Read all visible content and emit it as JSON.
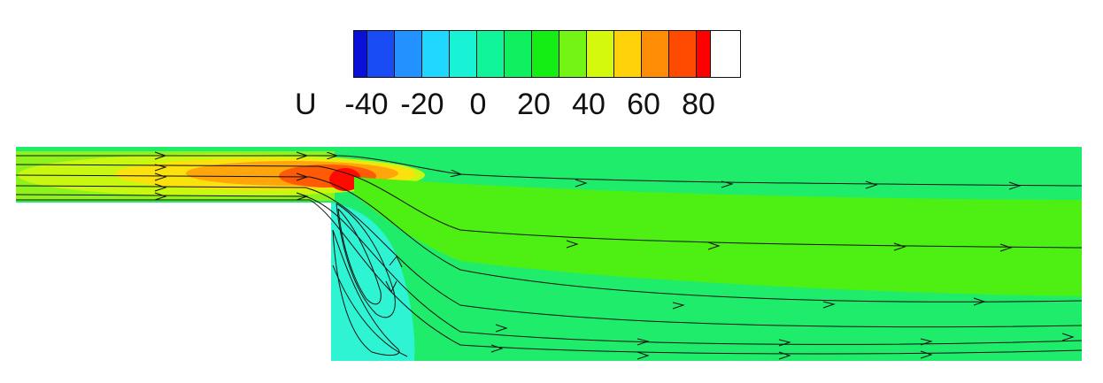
{
  "legend": {
    "variable": "U",
    "ticks": [
      "-40",
      "-20",
      "0",
      "20",
      "40",
      "60",
      "80"
    ],
    "colors": [
      "#0b10d8",
      "#1a4cf6",
      "#2391ff",
      "#1fd7ff",
      "#17f3d4",
      "#10f59a",
      "#0fef5f",
      "#15ee15",
      "#74f414",
      "#d4f90c",
      "#ffd20a",
      "#ff8c05",
      "#ff4a02",
      "#ff0000"
    ]
  },
  "flow": {
    "background_color": "#20ec6b",
    "core_color": "#4df012",
    "recirculation_color": "#2ef4d4",
    "inlet_colors": [
      "#8ef31a",
      "#c8f810",
      "#fbe20e",
      "#ffa60a",
      "#ff5a05",
      "#ff0a00"
    ]
  }
}
